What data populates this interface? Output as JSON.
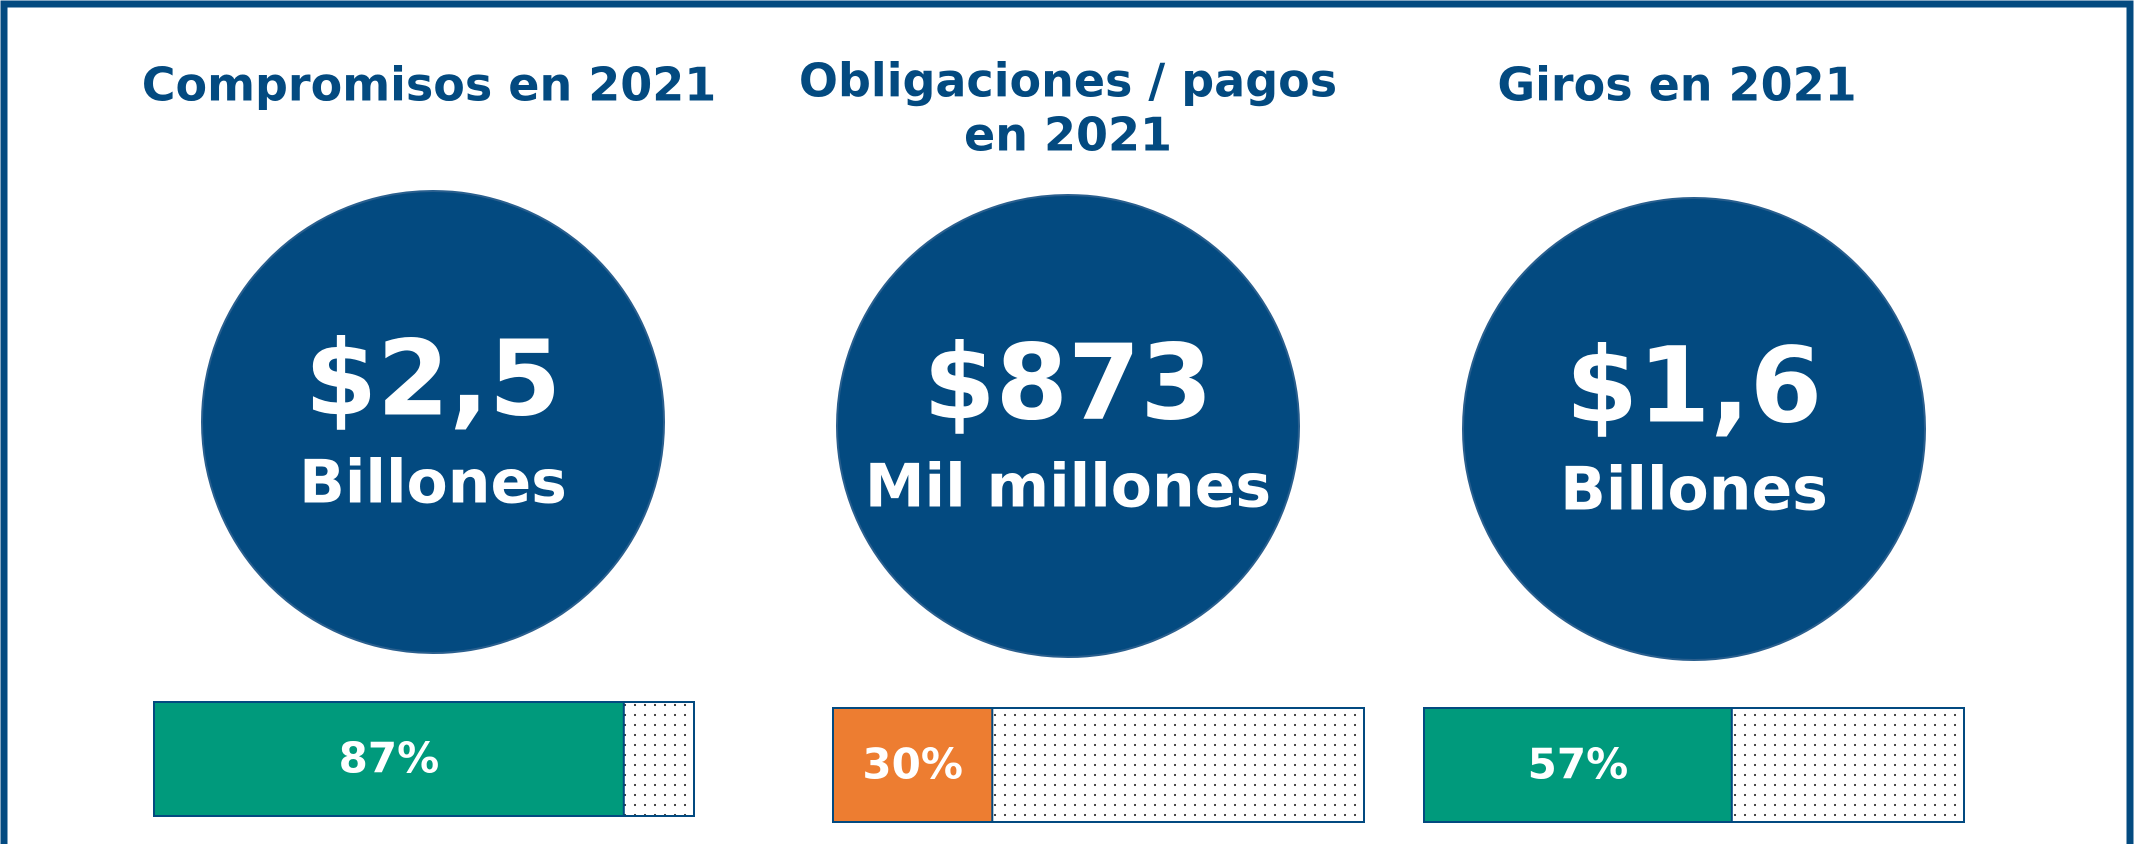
{
  "panels": [
    {
      "title": [
        "Compromisos en 2021"
      ],
      "amount": "$2,5",
      "unit": "Billones",
      "value": 87,
      "value_label": "87%",
      "color": "#009a7c"
    },
    {
      "title": [
        "Obligaciones / pagos",
        "en 2021"
      ],
      "amount": "$873",
      "unit": "Mil millones",
      "value": 30,
      "value_label": "30%",
      "color": "#ed7d31"
    },
    {
      "title": [
        "Giros en 2021"
      ],
      "amount": "$1,6",
      "unit": "Billones",
      "value": 57,
      "value_label": "57%",
      "color": "#009a7c"
    }
  ]
}
